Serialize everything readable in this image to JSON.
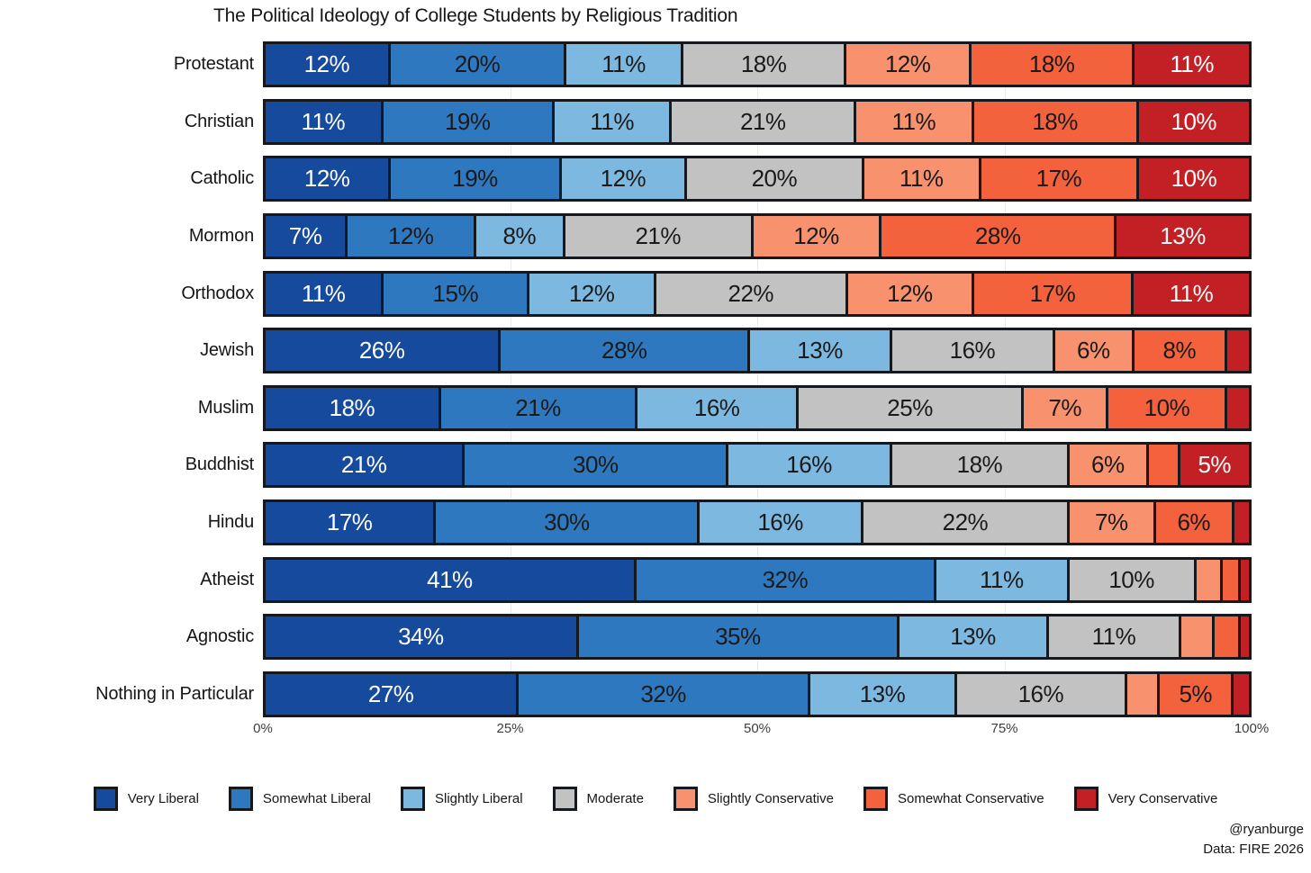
{
  "title": "The Political Ideology of College Students by Religious Tradition",
  "footer": {
    "handle": "@ryanburge",
    "source": "Data: FIRE 2026"
  },
  "chart_data": {
    "type": "bar",
    "variant": "horizontal-stacked-percent",
    "title": "The Political Ideology of College Students by Religious Tradition",
    "xlim": [
      0,
      100
    ],
    "x_ticks": [
      {
        "label": "0%",
        "pos": 0
      },
      {
        "label": "25%",
        "pos": 25
      },
      {
        "label": "50%",
        "pos": 50
      },
      {
        "label": "75%",
        "pos": 75
      },
      {
        "label": "100%",
        "pos": 100
      }
    ],
    "gridline_positions": [
      25,
      50,
      75
    ],
    "label_threshold_pct": 5,
    "legend_position": "bottom",
    "grid": true,
    "categories": [
      "Protestant",
      "Christian",
      "Catholic",
      "Mormon",
      "Orthodox",
      "Jewish",
      "Muslim",
      "Buddhist",
      "Hindu",
      "Atheist",
      "Agnostic",
      "Nothing in Particular"
    ],
    "series": [
      {
        "name": "Very Liberal",
        "color": "#164a9d",
        "text_color": "#ffffff",
        "values": [
          12,
          11,
          12,
          7,
          11,
          26,
          18,
          21,
          17,
          41,
          34,
          27
        ]
      },
      {
        "name": "Somewhat Liberal",
        "color": "#2e78bf",
        "text_color": "#1a1a1a",
        "values": [
          20,
          19,
          19,
          12,
          15,
          28,
          21,
          30,
          30,
          32,
          35,
          32
        ]
      },
      {
        "name": "Slightly Liberal",
        "color": "#7cb8df",
        "text_color": "#1a1a1a",
        "values": [
          11,
          11,
          12,
          8,
          12,
          13,
          16,
          16,
          16,
          11,
          13,
          13
        ]
      },
      {
        "name": "Moderate",
        "color": "#c2c2c2",
        "text_color": "#1a1a1a",
        "values": [
          18,
          21,
          20,
          21,
          22,
          16,
          25,
          18,
          22,
          10,
          11,
          16
        ]
      },
      {
        "name": "Slightly Conservative",
        "color": "#f7916e",
        "text_color": "#1a1a1a",
        "values": [
          12,
          11,
          11,
          12,
          12,
          6,
          7,
          6,
          7,
          3,
          4,
          4
        ]
      },
      {
        "name": "Somewhat Conservative",
        "color": "#f3613d",
        "text_color": "#1a1a1a",
        "values": [
          18,
          18,
          17,
          28,
          17,
          8,
          10,
          4,
          6,
          2,
          3,
          5
        ]
      },
      {
        "name": "Very Conservative",
        "color": "#c32026",
        "text_color": "#ffffff",
        "values": [
          11,
          10,
          10,
          13,
          11,
          3,
          3,
          5,
          2,
          1,
          1,
          2
        ]
      }
    ]
  }
}
